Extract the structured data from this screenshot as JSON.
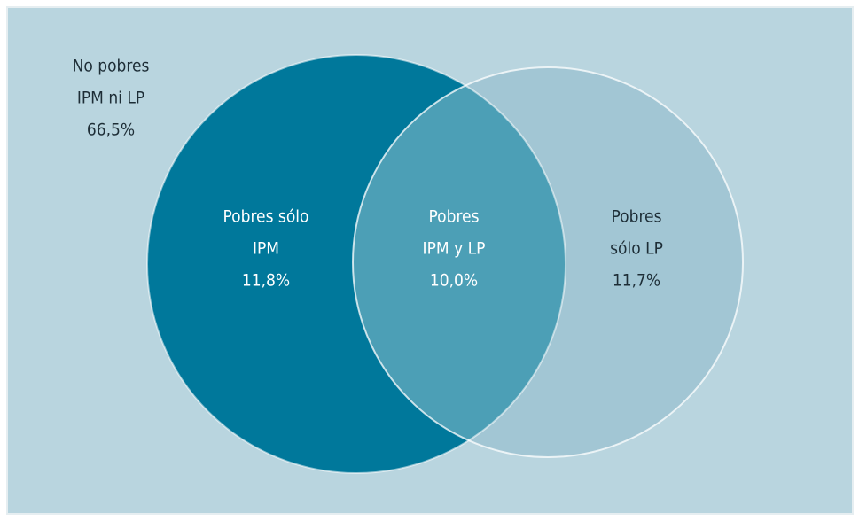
{
  "regions": [
    {
      "lines": [
        "No pobres",
        "IPM ni LP"
      ],
      "value": "66,5%"
    },
    {
      "lines": [
        "Pobres sólo",
        "IPM"
      ],
      "value": "11,8%"
    },
    {
      "lines": [
        "Pobres",
        "IPM y LP"
      ],
      "value": "10,0%"
    },
    {
      "lines": [
        "Pobres",
        "sólo LP"
      ],
      "value": "11,7%"
    }
  ]
}
